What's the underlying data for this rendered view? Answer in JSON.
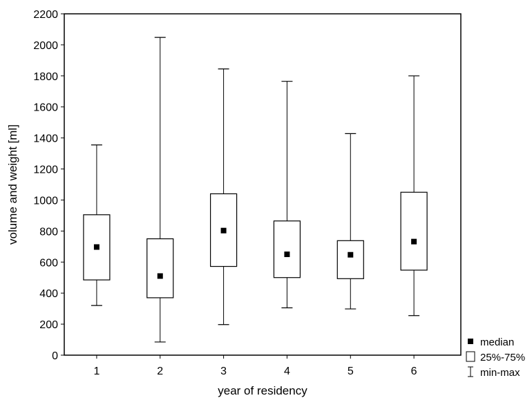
{
  "chart_data": {
    "type": "boxplot",
    "xlabel": "year of residency",
    "ylabel": "volume and weight [ml]",
    "ylim": [
      0,
      2200
    ],
    "yticks": [
      0,
      200,
      400,
      600,
      800,
      1000,
      1200,
      1400,
      1600,
      1800,
      2000,
      2200
    ],
    "categories": [
      "1",
      "2",
      "3",
      "4",
      "5",
      "6"
    ],
    "series": [
      {
        "category": "1",
        "min": 320,
        "q1": 485,
        "median": 697,
        "q3": 905,
        "max": 1355
      },
      {
        "category": "2",
        "min": 85,
        "q1": 370,
        "median": 510,
        "q3": 750,
        "max": 2048
      },
      {
        "category": "3",
        "min": 197,
        "q1": 572,
        "median": 803,
        "q3": 1040,
        "max": 1845
      },
      {
        "category": "4",
        "min": 305,
        "q1": 500,
        "median": 650,
        "q3": 865,
        "max": 1765
      },
      {
        "category": "5",
        "min": 298,
        "q1": 493,
        "median": 647,
        "q3": 738,
        "max": 1428
      },
      {
        "category": "6",
        "min": 255,
        "q1": 548,
        "median": 732,
        "q3": 1050,
        "max": 1800
      }
    ],
    "legend": {
      "position": "bottom-right",
      "items": [
        {
          "symbol": "filled-square",
          "label": "median"
        },
        {
          "symbol": "open-square",
          "label": "25%-75%"
        },
        {
          "symbol": "whisker",
          "label": "min-max"
        }
      ]
    },
    "grid": false
  }
}
